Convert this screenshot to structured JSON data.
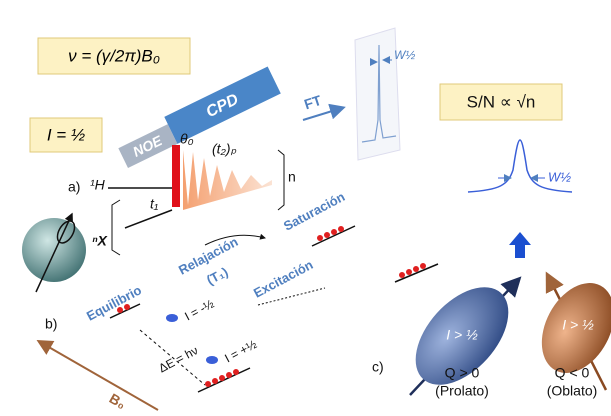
{
  "formula": "ν = (γ/2π)B₀",
  "spin": "I = ½",
  "pulse_sequence": {
    "label": "a)",
    "h_label": "¹H",
    "x_label": "ⁿX",
    "noe": "NOE",
    "cpd": "CPD",
    "t1": "t₁",
    "theta": "θ₀",
    "t2": "(t₂)ₚ",
    "n": "n"
  },
  "ft": {
    "label": "FT",
    "linewidth": "W½"
  },
  "snr": "S/N ∝ √n",
  "spectrum": {
    "linewidth": "W½"
  },
  "energy": {
    "label": "b)",
    "equilibrium": "Equilibrio",
    "relaxation": "Relajación",
    "t1": "(T₁)",
    "saturation": "Saturación",
    "excitation": "Excitación",
    "minus": "I = -½",
    "plus": "I = +½",
    "delta_e": "ΔE = hν",
    "field": "B₀"
  },
  "quadrupole": {
    "label": "c)",
    "prolate": {
      "spin": "I > ½",
      "q": "Q > 0",
      "name": "(Prolato)"
    },
    "oblate": {
      "spin": "I > ½",
      "q": "Q < 0",
      "name": "(Oblato)"
    }
  }
}
